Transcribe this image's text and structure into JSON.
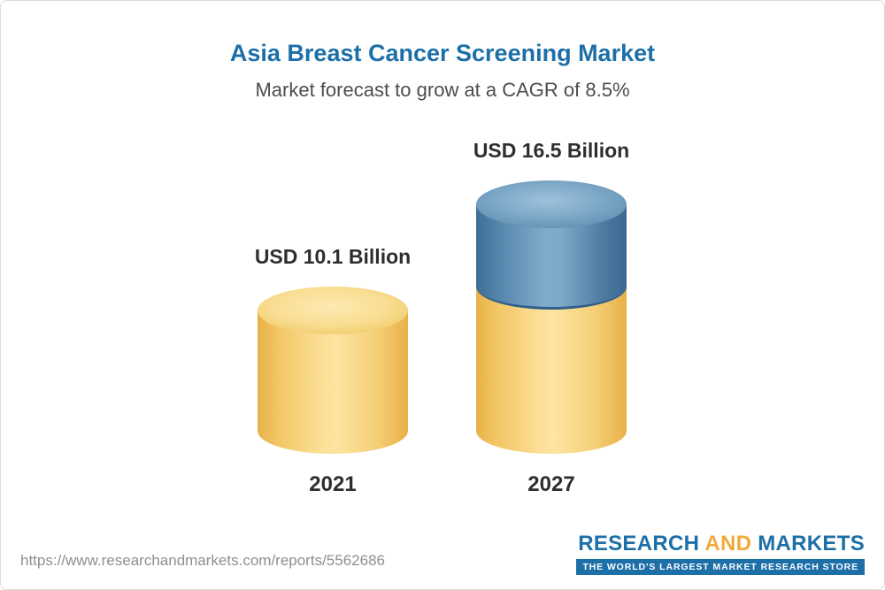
{
  "chart_data": {
    "type": "bar",
    "style": "3d-cylinder",
    "title": "Asia Breast Cancer Screening Market",
    "subtitle": "Market forecast to grow at a CAGR of 8.5%",
    "categories": [
      "2021",
      "2027"
    ],
    "values": [
      10.1,
      16.5
    ],
    "value_labels": [
      "USD 10.1 Billion",
      "USD 16.5 Billion"
    ],
    "unit": "USD Billion",
    "cagr_percent": 8.5,
    "ylim": [
      0,
      16.5
    ],
    "grid": false,
    "legend": false,
    "series_colors": {
      "base": "#F3CB68",
      "growth": "#58809F"
    }
  },
  "footer": {
    "url": "https://www.researchandmarkets.com/reports/5562686",
    "logo": {
      "research": "RESEARCH",
      "and": "AND",
      "markets": "MARKETS",
      "tagline": "THE WORLD'S LARGEST MARKET RESEARCH STORE"
    }
  },
  "theme": {
    "brand-blue": "#1D6FA8",
    "brand-gold": "#EFAC3C",
    "bar-yellow": "#F3CB68",
    "bar-blue": "#58809F",
    "text-dark": "#2E2E2E",
    "text-gray": "#8F8F8F"
  }
}
